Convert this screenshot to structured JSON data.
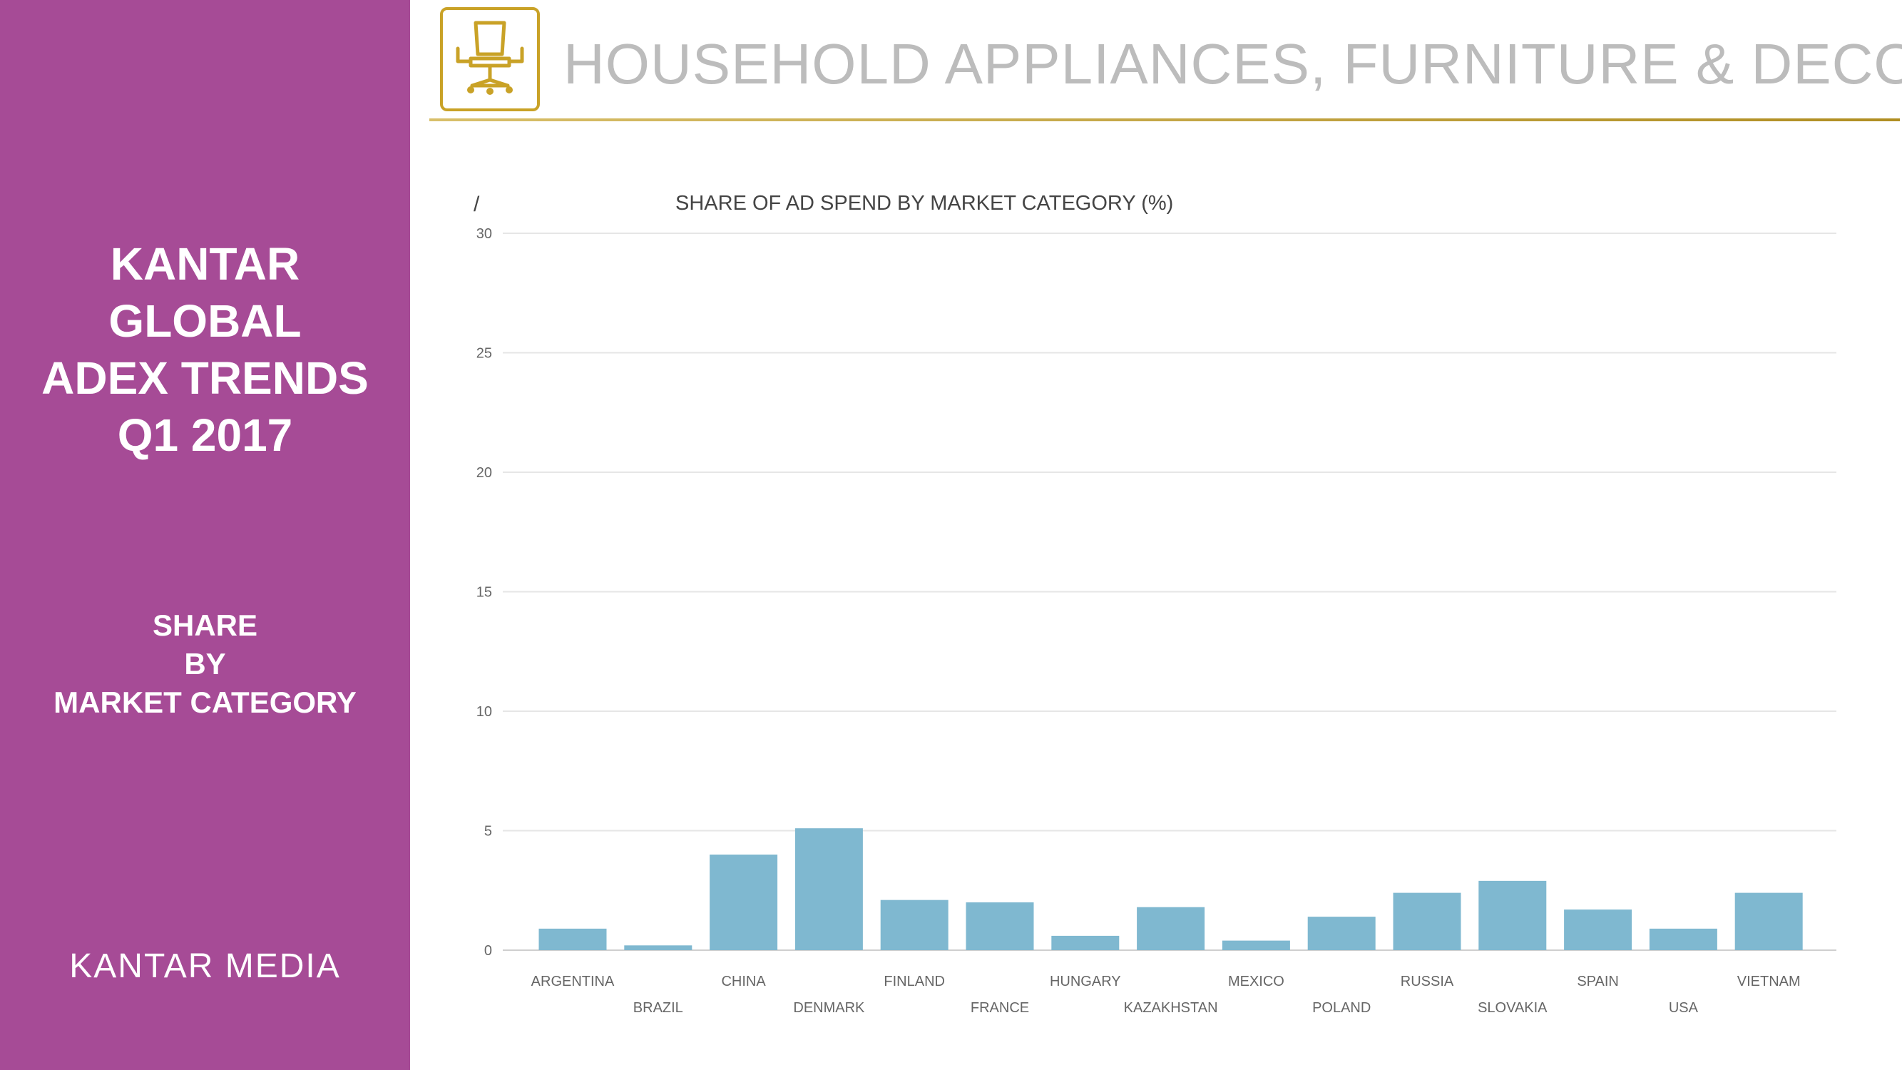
{
  "sidebar": {
    "title_lines": [
      "KANTAR",
      "GLOBAL",
      "ADEX TRENDS",
      "Q1 2017"
    ],
    "subtitle_lines": [
      "SHARE",
      "BY",
      "MARKET CATEGORY"
    ],
    "brand": "KANTAR MEDIA"
  },
  "header": {
    "title": "HOUSEHOLD APPLIANCES, FURNITURE & DECO",
    "icon": "office-chair-icon"
  },
  "colors": {
    "sidebar": "#a64b96",
    "gold": "#c9a227",
    "bar": "#7fb8d0",
    "title_gray": "#bcbcbc"
  },
  "chart_data": {
    "type": "bar",
    "title": "SHARE OF AD SPEND BY MARKET CATEGORY (%)",
    "corner_mark": "/",
    "xlabel": "",
    "ylabel": "",
    "ylim": [
      0,
      30
    ],
    "yticks": [
      0,
      5,
      10,
      15,
      20,
      25,
      30
    ],
    "grid": true,
    "categories": [
      "ARGENTINA",
      "BRAZIL",
      "CHINA",
      "DENMARK",
      "FINLAND",
      "FRANCE",
      "HUNGARY",
      "KAZAKHSTAN",
      "MEXICO",
      "POLAND",
      "RUSSIA",
      "SLOVAKIA",
      "SPAIN",
      "USA",
      "VIETNAM"
    ],
    "values": [
      0.9,
      0.2,
      4.0,
      5.1,
      2.1,
      2.0,
      0.6,
      1.8,
      0.4,
      1.4,
      2.4,
      2.9,
      1.7,
      0.9,
      2.4
    ]
  }
}
